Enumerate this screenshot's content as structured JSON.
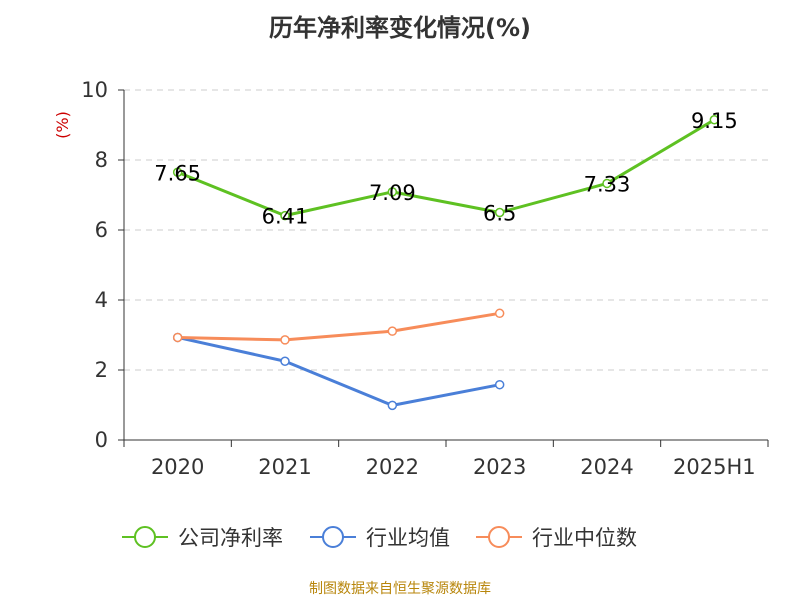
{
  "chart_data": {
    "type": "line",
    "title": "历年净利率变化情况(%)",
    "ylabel": "(%)",
    "categories": [
      "2020",
      "2021",
      "2022",
      "2023",
      "2024",
      "2025H1"
    ],
    "ylim": [
      0,
      10
    ],
    "yticks": [
      0,
      2,
      4,
      6,
      8,
      10
    ],
    "grid": true,
    "legend_position": "bottom",
    "series": [
      {
        "name": "公司净利率",
        "color": "#5ec122",
        "values": [
          7.65,
          6.41,
          7.09,
          6.5,
          7.33,
          9.15
        ],
        "labels": [
          "7.65",
          "6.41",
          "7.09",
          "6.5",
          "7.33",
          "9.15"
        ]
      },
      {
        "name": "行业均值",
        "color": "#4a7fd8",
        "values": [
          2.93,
          2.25,
          0.99,
          1.58,
          null,
          null
        ]
      },
      {
        "name": "行业中位数",
        "color": "#f78c5a",
        "values": [
          2.93,
          2.86,
          3.11,
          3.62,
          null,
          null
        ]
      }
    ]
  },
  "footer": "制图数据来自恒生聚源数据库"
}
